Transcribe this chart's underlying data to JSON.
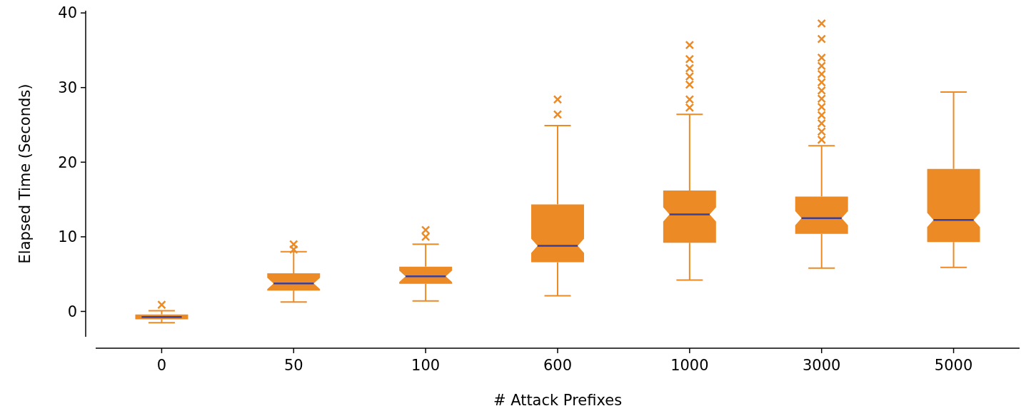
{
  "chart_data": {
    "type": "box",
    "xlabel": "# Attack Prefixes",
    "ylabel": "Elapsed Time (Seconds)",
    "categories": [
      "0",
      "50",
      "100",
      "600",
      "1000",
      "3000",
      "5000"
    ],
    "ylim": [
      -3.4,
      40.3
    ],
    "yticks": [
      0,
      10,
      20,
      30,
      40
    ],
    "grid": false,
    "marker": "cross",
    "series": [
      {
        "color": "#ec8a25",
        "boxes": [
          {
            "low": -1.5,
            "q1": -1.05,
            "median": -0.75,
            "q3": -0.4,
            "high": 0.1,
            "outliers": [
              0.9
            ]
          },
          {
            "low": 1.25,
            "q1": 2.8,
            "median": 3.75,
            "q3": 5.1,
            "high": 8.0,
            "outliers": [
              8.3,
              9.0
            ]
          },
          {
            "low": 1.4,
            "q1": 3.7,
            "median": 4.7,
            "q3": 6.0,
            "high": 9.0,
            "outliers": [
              10.0,
              10.9
            ]
          },
          {
            "low": 2.1,
            "q1": 6.6,
            "median": 8.8,
            "q3": 14.35,
            "high": 24.9,
            "outliers": [
              26.4,
              28.4
            ]
          },
          {
            "low": 4.2,
            "q1": 9.2,
            "median": 13.0,
            "q3": 16.2,
            "high": 26.4,
            "outliers": [
              27.3,
              28.4,
              30.4,
              31.5,
              32.6,
              33.8,
              35.7
            ]
          },
          {
            "low": 5.8,
            "q1": 10.4,
            "median": 12.5,
            "q3": 15.4,
            "high": 22.2,
            "outliers": [
              23.0,
              24.1,
              25.2,
              26.3,
              27.4,
              28.5,
              29.6,
              30.7,
              31.8,
              32.9,
              34.0,
              36.5,
              38.6
            ]
          },
          {
            "low": 5.9,
            "q1": 9.3,
            "median": 12.25,
            "q3": 19.1,
            "high": 29.4
          }
        ]
      }
    ]
  }
}
